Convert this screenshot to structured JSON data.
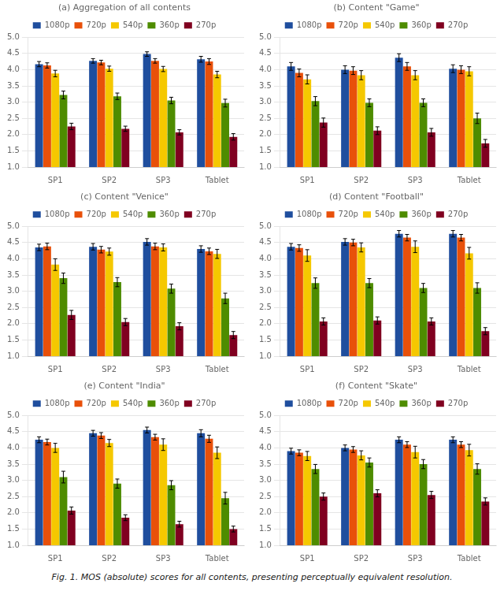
{
  "caption": "Fig. 1.  MOS (absolute) scores for all contents, presenting perceptually equivalent resolution.",
  "chart_data": [
    {
      "type": "bar",
      "title": "(a) Aggregation of all contents",
      "categories": [
        "SP1",
        "SP2",
        "SP3",
        "Tablet"
      ],
      "series": [
        {
          "name": "1080p",
          "color": "#1f4e9e",
          "values": [
            4.17,
            4.27,
            4.48,
            4.32
          ],
          "errors": [
            0.08,
            0.07,
            0.07,
            0.09
          ]
        },
        {
          "name": "720p",
          "color": "#e8500a",
          "values": [
            4.13,
            4.22,
            4.27,
            4.25
          ],
          "errors": [
            0.08,
            0.07,
            0.07,
            0.09
          ]
        },
        {
          "name": "540p",
          "color": "#f5c800",
          "values": [
            3.88,
            4.03,
            4.02,
            3.85
          ],
          "errors": [
            0.1,
            0.08,
            0.08,
            0.1
          ]
        },
        {
          "name": "360p",
          "color": "#4e8c00",
          "values": [
            3.22,
            3.18,
            3.05,
            2.97
          ],
          "errors": [
            0.12,
            0.1,
            0.1,
            0.12
          ]
        },
        {
          "name": "270p",
          "color": "#800020",
          "values": [
            2.25,
            2.18,
            2.07,
            1.93
          ],
          "errors": [
            0.1,
            0.08,
            0.08,
            0.1
          ]
        }
      ],
      "ylim": [
        1.0,
        5.0
      ],
      "yticks": [
        {
          "value": 1.0,
          "label": "1.0"
        },
        {
          "value": 1.5,
          "label": "1.5"
        },
        {
          "value": 2.0,
          "label": "2.0"
        },
        {
          "value": 2.5,
          "label": "2.5"
        },
        {
          "value": 3.0,
          "label": "3.0"
        },
        {
          "value": 3.5,
          "label": "3.5"
        },
        {
          "value": 4.0,
          "label": "4.0"
        },
        {
          "value": 4.5,
          "label": "4.5"
        },
        {
          "value": 5.0,
          "label": "5.0"
        }
      ],
      "grid": true,
      "legend": "top"
    },
    {
      "type": "bar",
      "title": "(b) Content \"Game\"",
      "categories": [
        "SP1",
        "SP2",
        "SP3",
        "Tablet"
      ],
      "series": [
        {
          "name": "1080p",
          "color": "#1f4e9e",
          "values": [
            4.1,
            4.0,
            4.37,
            4.03
          ],
          "errors": [
            0.12,
            0.12,
            0.12,
            0.12
          ]
        },
        {
          "name": "720p",
          "color": "#e8500a",
          "values": [
            3.9,
            3.97,
            4.1,
            4.0
          ],
          "errors": [
            0.12,
            0.12,
            0.12,
            0.12
          ]
        },
        {
          "name": "540p",
          "color": "#f5c800",
          "values": [
            3.7,
            3.83,
            3.83,
            3.95
          ],
          "errors": [
            0.14,
            0.14,
            0.14,
            0.14
          ]
        },
        {
          "name": "360p",
          "color": "#4e8c00",
          "values": [
            3.03,
            2.98,
            2.98,
            2.5
          ],
          "errors": [
            0.14,
            0.12,
            0.12,
            0.16
          ]
        },
        {
          "name": "270p",
          "color": "#800020",
          "values": [
            2.37,
            2.12,
            2.07,
            1.73
          ],
          "errors": [
            0.14,
            0.12,
            0.12,
            0.12
          ]
        }
      ],
      "ylim": [
        1.0,
        5.0
      ],
      "yticks": [
        {
          "value": 1.0,
          "label": "1.0"
        },
        {
          "value": 1.5,
          "label": "1.5"
        },
        {
          "value": 2.0,
          "label": "2.0"
        },
        {
          "value": 2.5,
          "label": "2.5"
        },
        {
          "value": 3.0,
          "label": "3.0"
        },
        {
          "value": 3.5,
          "label": "3.5"
        },
        {
          "value": 4.0,
          "label": "4.0"
        },
        {
          "value": 4.5,
          "label": "4.5"
        },
        {
          "value": 5.0,
          "label": "5.0"
        }
      ],
      "grid": true,
      "legend": "top"
    },
    {
      "type": "bar",
      "title": "(c) Content \"Venice\"",
      "categories": [
        "SP1",
        "SP2",
        "SP3",
        "Tablet"
      ],
      "series": [
        {
          "name": "1080p",
          "color": "#1f4e9e",
          "values": [
            4.35,
            4.37,
            4.52,
            4.3
          ],
          "errors": [
            0.1,
            0.1,
            0.1,
            0.1
          ]
        },
        {
          "name": "720p",
          "color": "#e8500a",
          "values": [
            4.38,
            4.28,
            4.38,
            4.23
          ],
          "errors": [
            0.1,
            0.1,
            0.1,
            0.1
          ]
        },
        {
          "name": "540p",
          "color": "#f5c800",
          "values": [
            3.82,
            4.22,
            4.35,
            4.15
          ],
          "errors": [
            0.18,
            0.11,
            0.11,
            0.14
          ]
        },
        {
          "name": "360p",
          "color": "#4e8c00",
          "values": [
            3.4,
            3.28,
            3.08,
            2.78
          ],
          "errors": [
            0.16,
            0.14,
            0.14,
            0.16
          ]
        },
        {
          "name": "270p",
          "color": "#800020",
          "values": [
            2.27,
            2.05,
            1.92,
            1.65
          ],
          "errors": [
            0.14,
            0.11,
            0.11,
            0.11
          ]
        }
      ],
      "ylim": [
        1.0,
        5.0
      ],
      "yticks": [
        {
          "value": 1.0,
          "label": "1.0"
        },
        {
          "value": 1.5,
          "label": "1.5"
        },
        {
          "value": 2.0,
          "label": "2.0"
        },
        {
          "value": 2.5,
          "label": "2.5"
        },
        {
          "value": 3.0,
          "label": "3.0"
        },
        {
          "value": 3.5,
          "label": "3.5"
        },
        {
          "value": 4.0,
          "label": "4.0"
        },
        {
          "value": 4.5,
          "label": "4.5"
        },
        {
          "value": 5.0,
          "label": "5.0"
        }
      ],
      "grid": true,
      "legend": "top"
    },
    {
      "type": "bar",
      "title": "(d) Content \"Football\"",
      "categories": [
        "SP1",
        "SP2",
        "SP3",
        "Tablet"
      ],
      "series": [
        {
          "name": "1080p",
          "color": "#1f4e9e",
          "values": [
            4.37,
            4.52,
            4.77,
            4.77
          ],
          "errors": [
            0.1,
            0.1,
            0.1,
            0.1
          ]
        },
        {
          "name": "720p",
          "color": "#e8500a",
          "values": [
            4.33,
            4.5,
            4.65,
            4.65
          ],
          "errors": [
            0.1,
            0.1,
            0.1,
            0.1
          ]
        },
        {
          "name": "540p",
          "color": "#f5c800",
          "values": [
            4.1,
            4.35,
            4.37,
            4.17
          ],
          "errors": [
            0.18,
            0.14,
            0.18,
            0.18
          ]
        },
        {
          "name": "360p",
          "color": "#4e8c00",
          "values": [
            3.25,
            3.25,
            3.1,
            3.1
          ],
          "errors": [
            0.16,
            0.14,
            0.14,
            0.16
          ]
        },
        {
          "name": "270p",
          "color": "#800020",
          "values": [
            2.07,
            2.1,
            2.07,
            1.77
          ],
          "errors": [
            0.11,
            0.11,
            0.11,
            0.11
          ]
        }
      ],
      "ylim": [
        1.0,
        5.0
      ],
      "yticks": [
        {
          "value": 1.0,
          "label": "1.0"
        },
        {
          "value": 1.5,
          "label": "1.5"
        },
        {
          "value": 2.0,
          "label": "2.0"
        },
        {
          "value": 2.5,
          "label": "2.5"
        },
        {
          "value": 3.0,
          "label": "3.0"
        },
        {
          "value": 3.5,
          "label": "3.5"
        },
        {
          "value": 4.0,
          "label": "4.0"
        },
        {
          "value": 4.5,
          "label": "4.5"
        },
        {
          "value": 5.0,
          "label": "5.0"
        }
      ],
      "grid": true,
      "legend": "top"
    },
    {
      "type": "bar",
      "title": "(e) Content \"India\"",
      "categories": [
        "SP1",
        "SP2",
        "SP3",
        "Tablet"
      ],
      "series": [
        {
          "name": "1080p",
          "color": "#1f4e9e",
          "values": [
            4.25,
            4.45,
            4.55,
            4.45
          ],
          "errors": [
            0.09,
            0.09,
            0.09,
            0.11
          ]
        },
        {
          "name": "720p",
          "color": "#e8500a",
          "values": [
            4.18,
            4.38,
            4.33,
            4.28
          ],
          "errors": [
            0.09,
            0.09,
            0.09,
            0.11
          ]
        },
        {
          "name": "540p",
          "color": "#f5c800",
          "values": [
            4.0,
            4.15,
            4.1,
            3.85
          ],
          "errors": [
            0.14,
            0.11,
            0.18,
            0.18
          ]
        },
        {
          "name": "360p",
          "color": "#4e8c00",
          "values": [
            3.1,
            2.9,
            2.85,
            2.45
          ],
          "errors": [
            0.18,
            0.14,
            0.14,
            0.18
          ]
        },
        {
          "name": "270p",
          "color": "#800020",
          "values": [
            2.07,
            1.85,
            1.65,
            1.5
          ],
          "errors": [
            0.11,
            0.09,
            0.09,
            0.09
          ]
        }
      ],
      "ylim": [
        1.0,
        5.0
      ],
      "yticks": [
        {
          "value": 1.0,
          "label": "1.0"
        },
        {
          "value": 1.5,
          "label": "1.5"
        },
        {
          "value": 2.0,
          "label": "2.0"
        },
        {
          "value": 2.5,
          "label": "2.5"
        },
        {
          "value": 3.0,
          "label": "3.0"
        },
        {
          "value": 3.5,
          "label": "3.5"
        },
        {
          "value": 4.0,
          "label": "4.0"
        },
        {
          "value": 4.5,
          "label": "4.5"
        },
        {
          "value": 5.0,
          "label": "5.0"
        }
      ],
      "grid": true,
      "legend": "top"
    },
    {
      "type": "bar",
      "title": "(f) Content \"Skate\"",
      "categories": [
        "SP1",
        "SP2",
        "SP3",
        "Tablet"
      ],
      "series": [
        {
          "name": "1080p",
          "color": "#1f4e9e",
          "values": [
            3.9,
            4.0,
            4.25,
            4.25
          ],
          "errors": [
            0.09,
            0.09,
            0.09,
            0.09
          ]
        },
        {
          "name": "720p",
          "color": "#e8500a",
          "values": [
            3.85,
            3.95,
            4.1,
            4.1
          ],
          "errors": [
            0.09,
            0.09,
            0.09,
            0.09
          ]
        },
        {
          "name": "540p",
          "color": "#f5c800",
          "values": [
            3.75,
            3.77,
            3.87,
            3.93
          ],
          "errors": [
            0.14,
            0.14,
            0.18,
            0.18
          ]
        },
        {
          "name": "360p",
          "color": "#4e8c00",
          "values": [
            3.35,
            3.55,
            3.5,
            3.35
          ],
          "errors": [
            0.14,
            0.14,
            0.14,
            0.16
          ]
        },
        {
          "name": "270p",
          "color": "#800020",
          "values": [
            2.5,
            2.6,
            2.55,
            2.35
          ],
          "errors": [
            0.11,
            0.11,
            0.11,
            0.11
          ]
        }
      ],
      "ylim": [
        1.0,
        5.0
      ],
      "yticks": [
        {
          "value": 1.0,
          "label": "1.0"
        },
        {
          "value": 1.5,
          "label": "1.5"
        },
        {
          "value": 2.0,
          "label": "2.0"
        },
        {
          "value": 2.5,
          "label": "2.5"
        },
        {
          "value": 3.0,
          "label": "3.0"
        },
        {
          "value": 3.5,
          "label": "3.5"
        },
        {
          "value": 4.0,
          "label": "4.0"
        },
        {
          "value": 4.5,
          "label": "4.5"
        },
        {
          "value": 5.0,
          "label": "5.0"
        }
      ],
      "grid": true,
      "legend": "top"
    }
  ]
}
